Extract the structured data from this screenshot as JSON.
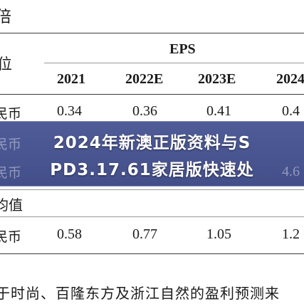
{
  "doc": {
    "top_fragment": "倍",
    "unit_fragment": "位",
    "eps_header": "EPS",
    "years": [
      "2021",
      "2022E",
      "2023E",
      "2024"
    ],
    "row1": {
      "label": "民币",
      "values": [
        "0.34",
        "0.36",
        "0.41",
        "0.4"
      ]
    },
    "row2": {
      "label": "民币",
      "values": [
        "",
        "",
        "",
        "4.6"
      ]
    },
    "row3": {
      "label": "民币",
      "values": [
        "",
        "",
        "",
        ""
      ]
    },
    "value_label": "均值",
    "row4": {
      "label": "民币",
      "values": [
        "0.58",
        "0.77",
        "1.05",
        "1.2"
      ]
    },
    "footer_text": "于时尚、百隆东方及浙江自然的盈利预测来"
  },
  "banner": {
    "line1": "2024年新澳正版资料与S",
    "line2": "PD3.17.61家居版快速处"
  },
  "colors": {
    "banner_bg": "#3c4a8c",
    "banner_text": "#ffffff",
    "body_text": "#1b1b1b"
  }
}
